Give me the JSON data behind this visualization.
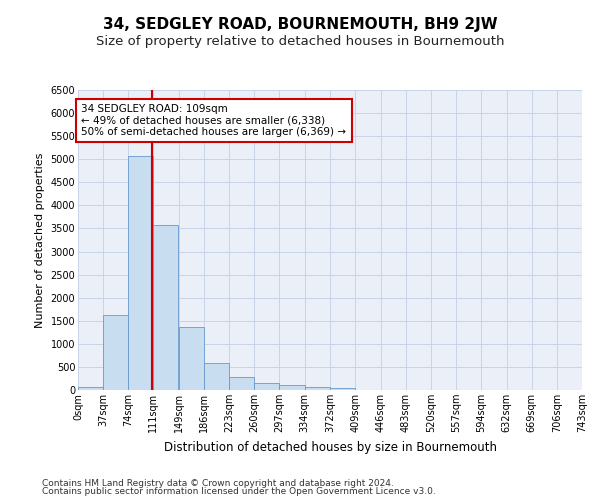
{
  "title": "34, SEDGLEY ROAD, BOURNEMOUTH, BH9 2JW",
  "subtitle": "Size of property relative to detached houses in Bournemouth",
  "xlabel": "Distribution of detached houses by size in Bournemouth",
  "ylabel": "Number of detached properties",
  "footer1": "Contains HM Land Registry data © Crown copyright and database right 2024.",
  "footer2": "Contains public sector information licensed under the Open Government Licence v3.0.",
  "bar_values": [
    75,
    1625,
    5075,
    3575,
    1375,
    575,
    275,
    150,
    100,
    75,
    50,
    10,
    5,
    5,
    5,
    5,
    5,
    5,
    5,
    5
  ],
  "bin_edges": [
    0,
    37,
    74,
    111,
    149,
    186,
    223,
    260,
    297,
    334,
    372,
    409,
    446,
    483,
    520,
    557,
    594,
    632,
    669,
    706,
    743
  ],
  "tick_labels": [
    "0sqm",
    "37sqm",
    "74sqm",
    "111sqm",
    "149sqm",
    "186sqm",
    "223sqm",
    "260sqm",
    "297sqm",
    "334sqm",
    "372sqm",
    "409sqm",
    "446sqm",
    "483sqm",
    "520sqm",
    "557sqm",
    "594sqm",
    "632sqm",
    "669sqm",
    "706sqm",
    "743sqm"
  ],
  "red_line_x": 109,
  "ylim": [
    0,
    6500
  ],
  "bar_color": "#c9ddf0",
  "bar_edge_color": "#6699cc",
  "red_line_color": "#cc0000",
  "grid_color": "#c8d4e8",
  "bg_color": "#eaeff8",
  "annotation_line1": "34 SEDGLEY ROAD: 109sqm",
  "annotation_line2": "← 49% of detached houses are smaller (6,338)",
  "annotation_line3": "50% of semi-detached houses are larger (6,369) →",
  "annotation_box_color": "#cc0000",
  "title_fontsize": 11,
  "subtitle_fontsize": 9.5,
  "xlabel_fontsize": 8.5,
  "ylabel_fontsize": 8,
  "tick_fontsize": 7,
  "annotation_fontsize": 7.5,
  "footer_fontsize": 6.5,
  "ytick_labels": [
    "0",
    "500",
    "1000",
    "1500",
    "2000",
    "2500",
    "3000",
    "3500",
    "4000",
    "4500",
    "5000",
    "5500",
    "6000",
    "6500"
  ]
}
